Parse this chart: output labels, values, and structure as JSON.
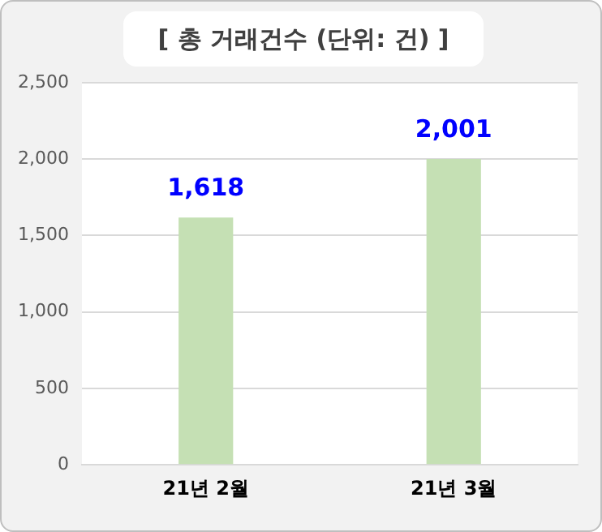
{
  "chart_data": {
    "type": "bar",
    "title": "[ 총 거래건수 (단위: 건) ]",
    "categories": [
      "21년 2월",
      "21년 3월"
    ],
    "values": [
      1618,
      2001
    ],
    "value_labels": [
      "1,618",
      "2,001"
    ],
    "color": "#c5e0b4",
    "ylim": [
      0,
      2500
    ],
    "yticks": [
      {
        "value": 0,
        "label": "0"
      },
      {
        "value": 500,
        "label": "500"
      },
      {
        "value": 1000,
        "label": "1,000"
      },
      {
        "value": 1500,
        "label": "1,500"
      },
      {
        "value": 2000,
        "label": "2,000"
      },
      {
        "value": 2500,
        "label": "2,500"
      }
    ],
    "grid": "y",
    "legend": false
  }
}
